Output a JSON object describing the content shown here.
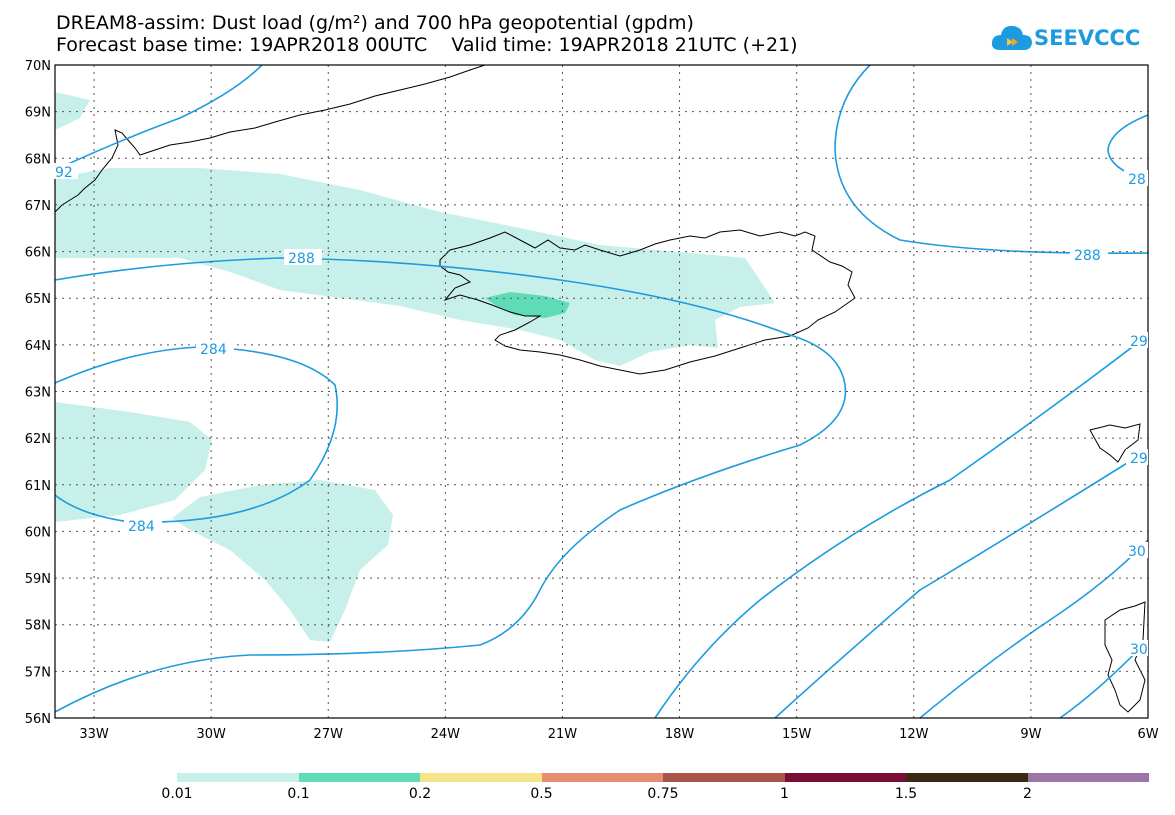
{
  "title": {
    "line1": "DREAM8-assim: Dust load (g/m²) and 700 hPa geopotential (gpdm)",
    "line2": "Forecast base time: 19APR2018 00UTC    Valid time: 19APR2018 21UTC (+21)"
  },
  "logo": {
    "text": "SEEVCCC",
    "icon": "cloud-icon",
    "color": "#1e9be0"
  },
  "map": {
    "lat_labels": [
      "70N",
      "69N",
      "68N",
      "67N",
      "66N",
      "65N",
      "64N",
      "63N",
      "62N",
      "61N",
      "60N",
      "59N",
      "58N",
      "57N",
      "56N"
    ],
    "lon_labels": [
      "33W",
      "30W",
      "27W",
      "24W",
      "21W",
      "18W",
      "15W",
      "12W",
      "9W",
      "6W"
    ],
    "contour_labels": [
      "92",
      "288",
      "284",
      "284",
      "288",
      "28",
      "29",
      "29",
      "30",
      "30"
    ],
    "contour_color": "#1e9be0",
    "dust_colors": {
      "low": "#c8f0ea",
      "mid": "#5fdcb6"
    }
  },
  "colorbar": {
    "colors": [
      "#c8f0ea",
      "#5fdcb6",
      "#f4e58a",
      "#e88e6e",
      "#a8554a",
      "#7a0f36",
      "#3a2a14",
      "#9c74a8"
    ],
    "labels": [
      "0.01",
      "0.1",
      "0.2",
      "0.5",
      "0.75",
      "1",
      "1.5",
      "2"
    ]
  }
}
